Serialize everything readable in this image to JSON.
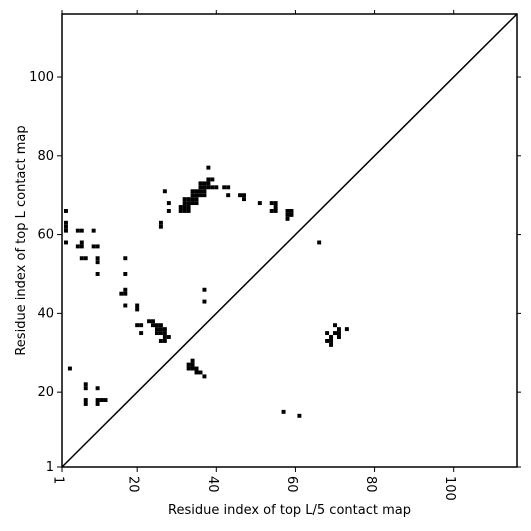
{
  "chart_data": {
    "type": "scatter",
    "xlabel": "Residue index of top L/5 contact map",
    "ylabel": "Residue index of top L contact map",
    "xlim": [
      1,
      116
    ],
    "ylim": [
      1,
      116
    ],
    "x_ticks": [
      1,
      20,
      40,
      60,
      80,
      100
    ],
    "y_ticks": [
      1,
      20,
      40,
      60,
      80,
      100
    ],
    "x_tick_labels": [
      "1",
      "20",
      "40",
      "60",
      "80",
      "100"
    ],
    "y_tick_labels": [
      "1",
      "20",
      "40",
      "60",
      "80",
      "100"
    ],
    "diagonal": true,
    "grid": false,
    "marker_color": "#000000",
    "points": [
      [
        2,
        66
      ],
      [
        2,
        63
      ],
      [
        2,
        62
      ],
      [
        2,
        61
      ],
      [
        2,
        58
      ],
      [
        3,
        26
      ],
      [
        5,
        61
      ],
      [
        6,
        61
      ],
      [
        5,
        57
      ],
      [
        6,
        57
      ],
      [
        6,
        58
      ],
      [
        6,
        54
      ],
      [
        7,
        54
      ],
      [
        7,
        22
      ],
      [
        7,
        21
      ],
      [
        7,
        18
      ],
      [
        7,
        17
      ],
      [
        9,
        61
      ],
      [
        9,
        57
      ],
      [
        10,
        57
      ],
      [
        10,
        54
      ],
      [
        10,
        53
      ],
      [
        10,
        50
      ],
      [
        10,
        21
      ],
      [
        10,
        18
      ],
      [
        10,
        17
      ],
      [
        11,
        18
      ],
      [
        12,
        18
      ],
      [
        16,
        45
      ],
      [
        17,
        45
      ],
      [
        17,
        46
      ],
      [
        17,
        42
      ],
      [
        17,
        50
      ],
      [
        17,
        54
      ],
      [
        20,
        42
      ],
      [
        20,
        41
      ],
      [
        20,
        37
      ],
      [
        21,
        37
      ],
      [
        21,
        35
      ],
      [
        23,
        38
      ],
      [
        24,
        38
      ],
      [
        24,
        37
      ],
      [
        25,
        37
      ],
      [
        25,
        36
      ],
      [
        25,
        35
      ],
      [
        26,
        37
      ],
      [
        26,
        36
      ],
      [
        26,
        35
      ],
      [
        26,
        62
      ],
      [
        26,
        63
      ],
      [
        27,
        36
      ],
      [
        27,
        35
      ],
      [
        27,
        34
      ],
      [
        27,
        33
      ],
      [
        26,
        33
      ],
      [
        28,
        34
      ],
      [
        27,
        71
      ],
      [
        28,
        68
      ],
      [
        28,
        66
      ],
      [
        31,
        67
      ],
      [
        31,
        66
      ],
      [
        32,
        66
      ],
      [
        32,
        67
      ],
      [
        33,
        66
      ],
      [
        33,
        67
      ],
      [
        32,
        68
      ],
      [
        33,
        68
      ],
      [
        32,
        69
      ],
      [
        33,
        69
      ],
      [
        34,
        68
      ],
      [
        34,
        69
      ],
      [
        35,
        68
      ],
      [
        35,
        69
      ],
      [
        34,
        70
      ],
      [
        35,
        70
      ],
      [
        34,
        71
      ],
      [
        35,
        71
      ],
      [
        36,
        70
      ],
      [
        36,
        71
      ],
      [
        37,
        70
      ],
      [
        37,
        71
      ],
      [
        36,
        72
      ],
      [
        37,
        72
      ],
      [
        36,
        73
      ],
      [
        37,
        73
      ],
      [
        38,
        72
      ],
      [
        38,
        73
      ],
      [
        38,
        74
      ],
      [
        39,
        74
      ],
      [
        39,
        72
      ],
      [
        40,
        72
      ],
      [
        38,
        77
      ],
      [
        42,
        72
      ],
      [
        43,
        72
      ],
      [
        43,
        70
      ],
      [
        46,
        70
      ],
      [
        47,
        70
      ],
      [
        47,
        69
      ],
      [
        51,
        68
      ],
      [
        54,
        68
      ],
      [
        55,
        68
      ],
      [
        54,
        66
      ],
      [
        55,
        66
      ],
      [
        55,
        67
      ],
      [
        58,
        66
      ],
      [
        58,
        65
      ],
      [
        59,
        66
      ],
      [
        59,
        65
      ],
      [
        58,
        64
      ],
      [
        66,
        58
      ],
      [
        57,
        15
      ],
      [
        61,
        14
      ],
      [
        33,
        27
      ],
      [
        34,
        27
      ],
      [
        34,
        26
      ],
      [
        33,
        26
      ],
      [
        34,
        28
      ],
      [
        35,
        26
      ],
      [
        35,
        25
      ],
      [
        36,
        25
      ],
      [
        37,
        24
      ],
      [
        37,
        46
      ],
      [
        37,
        43
      ],
      [
        68,
        35
      ],
      [
        68,
        33
      ],
      [
        69,
        33
      ],
      [
        69,
        32
      ],
      [
        69,
        34
      ],
      [
        70,
        37
      ],
      [
        70,
        35
      ],
      [
        71,
        35
      ],
      [
        71,
        34
      ],
      [
        71,
        36
      ],
      [
        73,
        36
      ]
    ]
  }
}
